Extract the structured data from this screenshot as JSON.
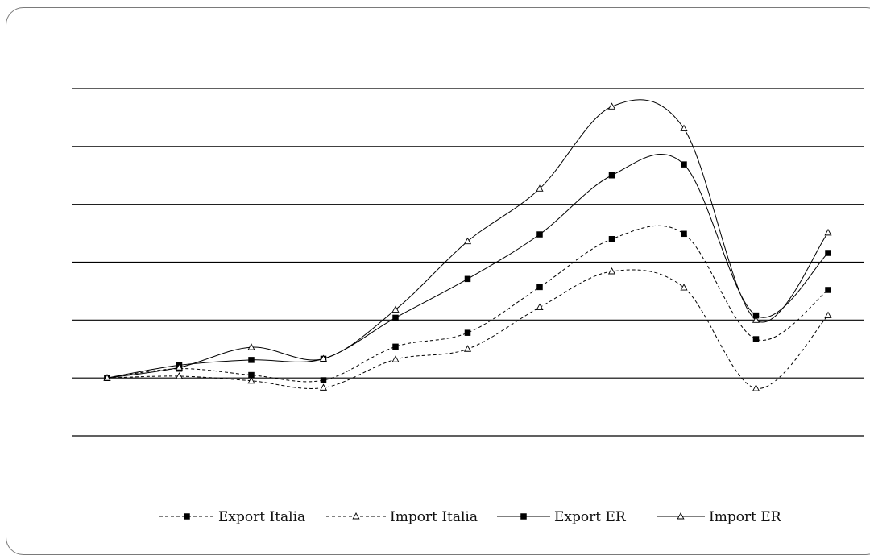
{
  "chart_data": {
    "type": "line",
    "title": "",
    "xlabel": "",
    "ylabel": "",
    "x": [
      1,
      2,
      3,
      4,
      5,
      6,
      7,
      8,
      9,
      10,
      11
    ],
    "ylim": [
      -100,
      500
    ],
    "yticks": [
      -100,
      0,
      100,
      200,
      300,
      400,
      500
    ],
    "grid": true,
    "legend_position": "bottom",
    "smooth": true,
    "series": [
      {
        "name": "Export Italia",
        "values": [
          0,
          16,
          5,
          -4,
          54,
          78,
          157,
          240,
          249,
          67,
          152
        ],
        "dash": "4,3",
        "marker": "square",
        "color": "#000000"
      },
      {
        "name": "Import Italia",
        "values": [
          0,
          3,
          -5,
          -17,
          32,
          50,
          122,
          184,
          156,
          -18,
          108
        ],
        "dash": "4,3",
        "marker": "triangle",
        "color": "#000000"
      },
      {
        "name": "Export ER",
        "values": [
          0,
          22,
          31,
          33,
          104,
          171,
          248,
          350,
          369,
          108,
          216
        ],
        "dash": "",
        "marker": "square",
        "color": "#000000"
      },
      {
        "name": "Import ER",
        "values": [
          0,
          18,
          53,
          33,
          118,
          236,
          327,
          469,
          431,
          100,
          251
        ],
        "dash": "",
        "marker": "triangle",
        "color": "#000000"
      }
    ]
  }
}
